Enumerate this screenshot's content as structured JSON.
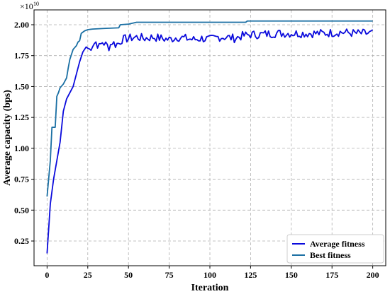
{
  "chart_data": {
    "type": "line",
    "title": "",
    "xlabel": "Iteration",
    "ylabel": "Average capacity (bps)",
    "y_scale_multiplier": "×10",
    "y_scale_exponent": "10",
    "xlim": [
      -8,
      208
    ],
    "ylim": [
      0.05,
      2.12
    ],
    "x_ticks": [
      0,
      25,
      50,
      75,
      100,
      125,
      150,
      175,
      200
    ],
    "x_tick_labels": [
      "0",
      "25",
      "50",
      "75",
      "100",
      "125",
      "150",
      "175",
      "200"
    ],
    "y_ticks": [
      0.25,
      0.5,
      0.75,
      1.0,
      1.25,
      1.5,
      1.75,
      2.0
    ],
    "y_tick_labels": [
      "0.25",
      "0.50",
      "0.75",
      "1.00",
      "1.25",
      "1.50",
      "1.75",
      "2.00"
    ],
    "grid": true,
    "legend_position": "bottom-right",
    "series": [
      {
        "name": "Average fitness",
        "color": "#0a0adc",
        "keypoints": [
          [
            0,
            0.15
          ],
          [
            2,
            0.55
          ],
          [
            4,
            0.75
          ],
          [
            6,
            0.9
          ],
          [
            8,
            1.05
          ],
          [
            10,
            1.3
          ],
          [
            12,
            1.4
          ],
          [
            14,
            1.45
          ],
          [
            16,
            1.5
          ],
          [
            18,
            1.6
          ],
          [
            20,
            1.7
          ],
          [
            22,
            1.78
          ],
          [
            24,
            1.82
          ],
          [
            26,
            1.8
          ],
          [
            28,
            1.84
          ],
          [
            30,
            1.86
          ],
          [
            32,
            1.82
          ],
          [
            34,
            1.86
          ],
          [
            36,
            1.84
          ],
          [
            38,
            1.82
          ],
          [
            40,
            1.86
          ],
          [
            42,
            1.84
          ],
          [
            44,
            1.85
          ],
          [
            46,
            1.88
          ],
          [
            50,
            1.89
          ],
          [
            55,
            1.9
          ],
          [
            60,
            1.89
          ],
          [
            65,
            1.9
          ],
          [
            70,
            1.89
          ],
          [
            75,
            1.88
          ],
          [
            80,
            1.9
          ],
          [
            85,
            1.89
          ],
          [
            90,
            1.88
          ],
          [
            95,
            1.89
          ],
          [
            100,
            1.88
          ],
          [
            105,
            1.9
          ],
          [
            110,
            1.9
          ],
          [
            115,
            1.89
          ],
          [
            120,
            1.91
          ],
          [
            125,
            1.92
          ],
          [
            130,
            1.92
          ],
          [
            140,
            1.93
          ],
          [
            150,
            1.93
          ],
          [
            160,
            1.93
          ],
          [
            170,
            1.93
          ],
          [
            180,
            1.94
          ],
          [
            190,
            1.93
          ],
          [
            200,
            1.93
          ]
        ]
      },
      {
        "name": "Best fitness",
        "color": "#1a6fa3",
        "points": [
          [
            0,
            0.61
          ],
          [
            2,
            0.9
          ],
          [
            3,
            1.17
          ],
          [
            5,
            1.17
          ],
          [
            6,
            1.42
          ],
          [
            7,
            1.45
          ],
          [
            8,
            1.49
          ],
          [
            10,
            1.52
          ],
          [
            12,
            1.57
          ],
          [
            13,
            1.65
          ],
          [
            14,
            1.72
          ],
          [
            16,
            1.8
          ],
          [
            18,
            1.83
          ],
          [
            19,
            1.86
          ],
          [
            20,
            1.87
          ],
          [
            21,
            1.93
          ],
          [
            23,
            1.95
          ],
          [
            25,
            1.96
          ],
          [
            28,
            1.965
          ],
          [
            35,
            1.97
          ],
          [
            44,
            1.975
          ],
          [
            45,
            2.0
          ],
          [
            50,
            2.005
          ],
          [
            55,
            2.02
          ],
          [
            100,
            2.02
          ],
          [
            122,
            2.02
          ],
          [
            123,
            2.03
          ],
          [
            200,
            2.03
          ]
        ]
      }
    ]
  }
}
